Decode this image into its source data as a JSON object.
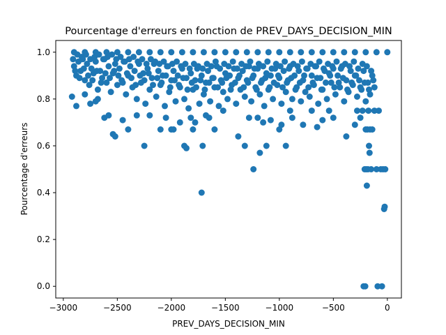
{
  "chart_data": {
    "type": "scatter",
    "title": "Pourcentage d'erreurs en fonction de PREV_DAYS_DECISION_MIN",
    "xlabel": "PREV_DAYS_DECISION_MIN",
    "ylabel": "Pourcentage d'erreurs",
    "xlim": [
      -3070,
      130
    ],
    "ylim": [
      -0.05,
      1.05
    ],
    "xticks": [
      -3000,
      -2500,
      -2000,
      -1500,
      -1000,
      -500,
      0
    ],
    "xtick_labels": [
      "−3000",
      "−2500",
      "−2000",
      "−1500",
      "−1000",
      "−500",
      "0"
    ],
    "yticks": [
      0.0,
      0.2,
      0.4,
      0.6,
      0.8,
      1.0
    ],
    "ytick_labels": [
      "0.0",
      "0.2",
      "0.4",
      "0.6",
      "0.8",
      "1.0"
    ],
    "grid": false,
    "marker_color": "#1f77b4",
    "points": [
      [
        -2900,
        1.0
      ],
      [
        -2800,
        1.0
      ],
      [
        -2700,
        1.0
      ],
      [
        -2600,
        1.0
      ],
      [
        -2500,
        1.0
      ],
      [
        -2400,
        1.0
      ],
      [
        -2300,
        1.0
      ],
      [
        -2200,
        1.0
      ],
      [
        -2100,
        1.0
      ],
      [
        -2000,
        1.0
      ],
      [
        -1900,
        1.0
      ],
      [
        -1800,
        1.0
      ],
      [
        -1700,
        1.0
      ],
      [
        -1600,
        1.0
      ],
      [
        -1500,
        1.0
      ],
      [
        -1400,
        1.0
      ],
      [
        -1300,
        1.0
      ],
      [
        -1200,
        1.0
      ],
      [
        -1100,
        1.0
      ],
      [
        -1000,
        1.0
      ],
      [
        -900,
        1.0
      ],
      [
        -800,
        1.0
      ],
      [
        -700,
        1.0
      ],
      [
        -600,
        1.0
      ],
      [
        -500,
        1.0
      ],
      [
        -400,
        1.0
      ],
      [
        -300,
        1.0
      ],
      [
        -200,
        1.0
      ],
      [
        -100,
        1.0
      ],
      [
        0,
        1.0
      ],
      [
        -2920,
        0.81
      ],
      [
        -2880,
        0.77
      ],
      [
        -2800,
        0.82
      ],
      [
        -2750,
        0.78
      ],
      [
        -2700,
        0.79
      ],
      [
        -2680,
        0.8
      ],
      [
        -2620,
        0.72
      ],
      [
        -2580,
        0.73
      ],
      [
        -2540,
        0.65
      ],
      [
        -2520,
        0.64
      ],
      [
        -2450,
        0.71
      ],
      [
        -2400,
        0.67
      ],
      [
        -2320,
        0.73
      ],
      [
        -2250,
        0.6
      ],
      [
        -2200,
        0.73
      ],
      [
        -2100,
        0.67
      ],
      [
        -2050,
        0.72
      ],
      [
        -2000,
        0.67
      ],
      [
        -1980,
        0.67
      ],
      [
        -1920,
        0.7
      ],
      [
        -1880,
        0.6
      ],
      [
        -1860,
        0.59
      ],
      [
        -1820,
        0.72
      ],
      [
        -1800,
        0.67
      ],
      [
        -1780,
        0.7
      ],
      [
        -1720,
        0.4
      ],
      [
        -1710,
        0.6
      ],
      [
        -1680,
        0.73
      ],
      [
        -1650,
        0.72
      ],
      [
        -1600,
        0.67
      ],
      [
        -1520,
        0.75
      ],
      [
        -1380,
        0.64
      ],
      [
        -1320,
        0.6
      ],
      [
        -1280,
        0.72
      ],
      [
        -1240,
        0.5
      ],
      [
        -1200,
        0.72
      ],
      [
        -1180,
        0.57
      ],
      [
        -1150,
        0.7
      ],
      [
        -1120,
        0.6
      ],
      [
        -1080,
        0.71
      ],
      [
        -1000,
        0.67
      ],
      [
        -980,
        0.69
      ],
      [
        -940,
        0.6
      ],
      [
        -900,
        0.75
      ],
      [
        -880,
        0.72
      ],
      [
        -780,
        0.69
      ],
      [
        -700,
        0.75
      ],
      [
        -650,
        0.68
      ],
      [
        -600,
        0.71
      ],
      [
        -540,
        0.75
      ],
      [
        -500,
        0.72
      ],
      [
        -380,
        0.64
      ],
      [
        -300,
        0.69
      ],
      [
        -280,
        0.75
      ],
      [
        -250,
        0.72
      ],
      [
        -230,
        0.75
      ],
      [
        -220,
        0.0
      ],
      [
        -210,
        0.5
      ],
      [
        -205,
        0.0
      ],
      [
        -200,
        0.67
      ],
      [
        -195,
        0.5
      ],
      [
        -190,
        0.43
      ],
      [
        -185,
        0.67
      ],
      [
        -180,
        0.5
      ],
      [
        -175,
        0.75
      ],
      [
        -170,
        0.6
      ],
      [
        -165,
        0.57
      ],
      [
        -160,
        0.67
      ],
      [
        -150,
        0.5
      ],
      [
        -140,
        0.67
      ],
      [
        -120,
        0.75
      ],
      [
        -100,
        0.5
      ],
      [
        -90,
        0.0
      ],
      [
        -80,
        0.75
      ],
      [
        -60,
        0.5
      ],
      [
        -50,
        0.0
      ],
      [
        -40,
        0.5
      ],
      [
        -30,
        0.33
      ],
      [
        -25,
        0.34
      ],
      [
        -20,
        0.5
      ],
      [
        -2900,
        0.94
      ],
      [
        -2880,
        0.9
      ],
      [
        -2860,
        0.96
      ],
      [
        -2840,
        0.92
      ],
      [
        -2820,
        0.97
      ],
      [
        -2800,
        0.88
      ],
      [
        -2780,
        0.95
      ],
      [
        -2760,
        0.86
      ],
      [
        -2740,
        0.93
      ],
      [
        -2720,
        0.91
      ],
      [
        -2700,
        0.96
      ],
      [
        -2680,
        0.84
      ],
      [
        -2660,
        0.92
      ],
      [
        -2640,
        0.89
      ],
      [
        -2620,
        0.97
      ],
      [
        -2600,
        0.87
      ],
      [
        -2580,
        0.94
      ],
      [
        -2560,
        0.83
      ],
      [
        -2540,
        0.91
      ],
      [
        -2520,
        0.95
      ],
      [
        -2500,
        0.86
      ],
      [
        -2480,
        0.93
      ],
      [
        -2460,
        0.88
      ],
      [
        -2440,
        0.96
      ],
      [
        -2420,
        0.82
      ],
      [
        -2400,
        0.9
      ],
      [
        -2380,
        0.94
      ],
      [
        -2360,
        0.85
      ],
      [
        -2340,
        0.92
      ],
      [
        -2320,
        0.8
      ],
      [
        -2300,
        0.95
      ],
      [
        -2280,
        0.87
      ],
      [
        -2260,
        0.91
      ],
      [
        -2240,
        0.78
      ],
      [
        -2220,
        0.93
      ],
      [
        -2200,
        0.84
      ],
      [
        -2180,
        0.89
      ],
      [
        -2160,
        0.95
      ],
      [
        -2140,
        0.81
      ],
      [
        -2120,
        0.92
      ],
      [
        -2100,
        0.86
      ],
      [
        -2080,
        0.9
      ],
      [
        -2060,
        0.77
      ],
      [
        -2040,
        0.94
      ],
      [
        -2020,
        0.83
      ],
      [
        -2000,
        0.88
      ],
      [
        -1980,
        0.92
      ],
      [
        -1960,
        0.79
      ],
      [
        -1940,
        0.9
      ],
      [
        -1920,
        0.85
      ],
      [
        -1900,
        0.93
      ],
      [
        -1880,
        0.8
      ],
      [
        -1860,
        0.89
      ],
      [
        -1840,
        0.76
      ],
      [
        -1820,
        0.91
      ],
      [
        -1800,
        0.84
      ],
      [
        -1780,
        0.88
      ],
      [
        -1760,
        0.93
      ],
      [
        -1740,
        0.78
      ],
      [
        -1720,
        0.9
      ],
      [
        -1700,
        0.82
      ],
      [
        -1680,
        0.87
      ],
      [
        -1660,
        0.92
      ],
      [
        -1640,
        0.79
      ],
      [
        -1620,
        0.89
      ],
      [
        -1600,
        0.85
      ],
      [
        -1580,
        0.94
      ],
      [
        -1560,
        0.77
      ],
      [
        -1540,
        0.88
      ],
      [
        -1520,
        0.83
      ],
      [
        -1500,
        0.91
      ],
      [
        -1480,
        0.8
      ],
      [
        -1460,
        0.9
      ],
      [
        -1440,
        0.86
      ],
      [
        -1420,
        0.93
      ],
      [
        -1400,
        0.78
      ],
      [
        -1380,
        0.89
      ],
      [
        -1360,
        0.84
      ],
      [
        -1340,
        0.92
      ],
      [
        -1320,
        0.81
      ],
      [
        -1300,
        0.88
      ],
      [
        -1280,
        0.94
      ],
      [
        -1260,
        0.79
      ],
      [
        -1240,
        0.9
      ],
      [
        -1220,
        0.85
      ],
      [
        -1200,
        0.93
      ],
      [
        -1180,
        0.82
      ],
      [
        -1160,
        0.88
      ],
      [
        -1140,
        0.77
      ],
      [
        -1120,
        0.91
      ],
      [
        -1100,
        0.84
      ],
      [
        -1080,
        0.9
      ],
      [
        -1060,
        0.8
      ],
      [
        -1040,
        0.93
      ],
      [
        -1020,
        0.86
      ],
      [
        -1000,
        0.89
      ],
      [
        -980,
        0.78
      ],
      [
        -960,
        0.92
      ],
      [
        -940,
        0.83
      ],
      [
        -920,
        0.88
      ],
      [
        -900,
        0.94
      ],
      [
        -880,
        0.8
      ],
      [
        -860,
        0.9
      ],
      [
        -840,
        0.85
      ],
      [
        -820,
        0.92
      ],
      [
        -800,
        0.79
      ],
      [
        -780,
        0.88
      ],
      [
        -760,
        0.83
      ],
      [
        -740,
        0.93
      ],
      [
        -720,
        0.81
      ],
      [
        -700,
        0.9
      ],
      [
        -680,
        0.86
      ],
      [
        -660,
        0.94
      ],
      [
        -640,
        0.78
      ],
      [
        -620,
        0.89
      ],
      [
        -600,
        0.84
      ],
      [
        -580,
        0.92
      ],
      [
        -560,
        0.8
      ],
      [
        -540,
        0.91
      ],
      [
        -520,
        0.87
      ],
      [
        -500,
        0.93
      ],
      [
        -480,
        0.82
      ],
      [
        -460,
        0.9
      ],
      [
        -440,
        0.85
      ],
      [
        -420,
        0.94
      ],
      [
        -400,
        0.79
      ],
      [
        -380,
        0.88
      ],
      [
        -360,
        0.83
      ],
      [
        -340,
        0.92
      ],
      [
        -320,
        0.86
      ],
      [
        -300,
        0.9
      ],
      [
        -280,
        0.81
      ],
      [
        -260,
        0.88
      ],
      [
        -240,
        0.84
      ],
      [
        -220,
        0.92
      ],
      [
        -200,
        0.79
      ],
      [
        -180,
        0.87
      ],
      [
        -160,
        0.82
      ],
      [
        -140,
        0.9
      ],
      [
        -120,
        0.85
      ],
      [
        -2910,
        0.97
      ],
      [
        -2870,
        0.99
      ],
      [
        -2830,
        0.98
      ],
      [
        -2790,
        0.99
      ],
      [
        -2750,
        0.97
      ],
      [
        -2710,
        0.98
      ],
      [
        -2670,
        0.99
      ],
      [
        -2630,
        0.97
      ],
      [
        -2590,
        0.98
      ],
      [
        -2550,
        0.99
      ],
      [
        -2510,
        0.97
      ],
      [
        -2470,
        0.98
      ],
      [
        -2430,
        0.96
      ],
      [
        -2390,
        0.97
      ],
      [
        -2350,
        0.98
      ],
      [
        -2310,
        0.96
      ],
      [
        -2270,
        0.97
      ],
      [
        -2230,
        0.95
      ],
      [
        -2190,
        0.97
      ],
      [
        -2150,
        0.96
      ],
      [
        -2110,
        0.95
      ],
      [
        -2070,
        0.96
      ],
      [
        -2030,
        0.94
      ],
      [
        -1990,
        0.95
      ],
      [
        -1950,
        0.96
      ],
      [
        -1910,
        0.94
      ],
      [
        -1870,
        0.95
      ],
      [
        -1830,
        0.93
      ],
      [
        -1790,
        0.95
      ],
      [
        -1750,
        0.94
      ],
      [
        -1710,
        0.93
      ],
      [
        -1670,
        0.95
      ],
      [
        -1630,
        0.94
      ],
      [
        -1590,
        0.96
      ],
      [
        -1550,
        0.93
      ],
      [
        -1510,
        0.95
      ],
      [
        -1470,
        0.94
      ],
      [
        -1430,
        0.96
      ],
      [
        -1390,
        0.93
      ],
      [
        -1350,
        0.95
      ],
      [
        -1310,
        0.94
      ],
      [
        -1270,
        0.96
      ],
      [
        -1230,
        0.93
      ],
      [
        -1190,
        0.95
      ],
      [
        -1150,
        0.94
      ],
      [
        -1110,
        0.96
      ],
      [
        -1070,
        0.93
      ],
      [
        -1030,
        0.95
      ],
      [
        -990,
        0.94
      ],
      [
        -950,
        0.96
      ],
      [
        -910,
        0.93
      ],
      [
        -870,
        0.95
      ],
      [
        -830,
        0.94
      ],
      [
        -790,
        0.96
      ],
      [
        -750,
        0.93
      ],
      [
        -710,
        0.95
      ],
      [
        -670,
        0.94
      ],
      [
        -630,
        0.96
      ],
      [
        -590,
        0.93
      ],
      [
        -550,
        0.95
      ],
      [
        -510,
        0.94
      ],
      [
        -470,
        0.96
      ],
      [
        -430,
        0.93
      ],
      [
        -390,
        0.95
      ],
      [
        -350,
        0.94
      ],
      [
        -310,
        0.96
      ],
      [
        -270,
        0.93
      ],
      [
        -230,
        0.95
      ],
      [
        -190,
        0.94
      ],
      [
        -150,
        0.92
      ],
      [
        -2890,
        0.92
      ],
      [
        -2850,
        0.89
      ],
      [
        -2810,
        0.93
      ],
      [
        -2770,
        0.9
      ],
      [
        -2730,
        0.88
      ],
      [
        -2690,
        0.92
      ],
      [
        -2650,
        0.87
      ],
      [
        -2610,
        0.91
      ],
      [
        -2570,
        0.89
      ],
      [
        -2530,
        0.92
      ],
      [
        -2490,
        0.9
      ],
      [
        -2450,
        0.87
      ],
      [
        -2410,
        0.91
      ],
      [
        -2370,
        0.89
      ],
      [
        -2330,
        0.86
      ],
      [
        -2290,
        0.9
      ],
      [
        -2250,
        0.88
      ],
      [
        -2210,
        0.91
      ],
      [
        -2170,
        0.86
      ],
      [
        -2130,
        0.89
      ],
      [
        -2090,
        0.87
      ],
      [
        -2050,
        0.9
      ],
      [
        -2010,
        0.85
      ],
      [
        -1970,
        0.88
      ],
      [
        -1930,
        0.86
      ],
      [
        -1890,
        0.89
      ],
      [
        -1850,
        0.84
      ],
      [
        -1810,
        0.87
      ],
      [
        -1770,
        0.85
      ],
      [
        -1730,
        0.88
      ],
      [
        -1690,
        0.84
      ],
      [
        -1650,
        0.87
      ],
      [
        -1610,
        0.89
      ],
      [
        -1570,
        0.85
      ],
      [
        -1530,
        0.87
      ],
      [
        -1490,
        0.89
      ],
      [
        -1450,
        0.84
      ],
      [
        -1410,
        0.87
      ],
      [
        -1370,
        0.9
      ],
      [
        -1330,
        0.85
      ],
      [
        -1290,
        0.87
      ],
      [
        -1250,
        0.89
      ],
      [
        -1210,
        0.84
      ],
      [
        -1170,
        0.87
      ],
      [
        -1130,
        0.89
      ],
      [
        -1090,
        0.85
      ],
      [
        -1050,
        0.87
      ],
      [
        -1010,
        0.9
      ],
      [
        -970,
        0.85
      ],
      [
        -930,
        0.87
      ],
      [
        -890,
        0.89
      ],
      [
        -850,
        0.84
      ],
      [
        -810,
        0.87
      ],
      [
        -770,
        0.9
      ],
      [
        -730,
        0.85
      ],
      [
        -690,
        0.87
      ],
      [
        -650,
        0.89
      ],
      [
        -610,
        0.84
      ],
      [
        -570,
        0.87
      ],
      [
        -530,
        0.9
      ],
      [
        -490,
        0.85
      ],
      [
        -450,
        0.87
      ],
      [
        -410,
        0.89
      ],
      [
        -370,
        0.84
      ],
      [
        -330,
        0.87
      ],
      [
        -290,
        0.9
      ],
      [
        -250,
        0.85
      ],
      [
        -210,
        0.87
      ],
      [
        -170,
        0.84
      ],
      [
        -130,
        0.88
      ]
    ]
  }
}
